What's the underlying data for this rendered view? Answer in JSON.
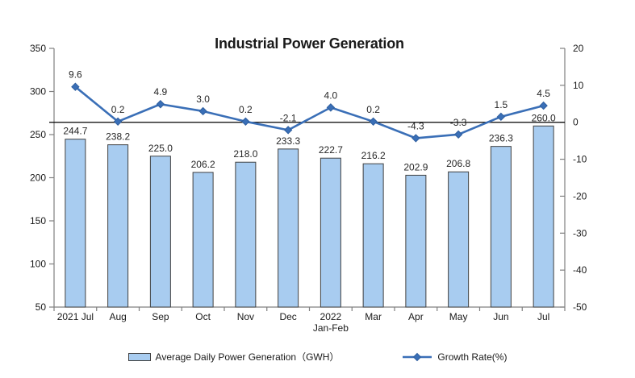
{
  "title": "Industrial Power Generation",
  "legend": {
    "bar_label": "Average Daily Power Generation（GWH）",
    "line_label": "Growth Rate(%)"
  },
  "colors": {
    "bar_fill": "#A8CCF0",
    "bar_border": "#404040",
    "line": "#3A6FB7",
    "marker": "#2E5E9E",
    "axis": "#808080",
    "zero_line": "#000000",
    "label_text": "#262626",
    "tick_text": "#1a1a1a"
  },
  "chart_data": {
    "type": "combo",
    "title": "Industrial Power Generation",
    "categories": [
      "2021 Jul",
      "Aug",
      "Sep",
      "Oct",
      "Nov",
      "Dec",
      "2022\nJan-Feb",
      "Mar",
      "Apr",
      "May",
      "Jun",
      "Jul"
    ],
    "series": [
      {
        "name": "Average Daily Power Generation（GWH）",
        "type": "bar",
        "axis": "left",
        "values": [
          244.7,
          238.2,
          225.0,
          206.2,
          218.0,
          233.3,
          222.7,
          216.2,
          202.9,
          206.8,
          236.3,
          260.0
        ]
      },
      {
        "name": "Growth Rate(%)",
        "type": "line",
        "axis": "right",
        "values": [
          9.6,
          0.2,
          4.9,
          3.0,
          0.2,
          -2.1,
          4.0,
          0.2,
          -4.3,
          -3.3,
          1.5,
          4.5
        ]
      }
    ],
    "left_axis": {
      "min": 50,
      "max": 350,
      "tick_step": 50,
      "ticks": [
        350,
        300,
        250,
        200,
        150,
        100,
        50
      ]
    },
    "right_axis": {
      "min": -50,
      "max": 20,
      "tick_step": 10,
      "ticks": [
        20,
        10,
        0,
        -10,
        -20,
        -30,
        -40,
        -50
      ]
    },
    "grid": false,
    "data_labels": true,
    "legend_position": "bottom"
  }
}
